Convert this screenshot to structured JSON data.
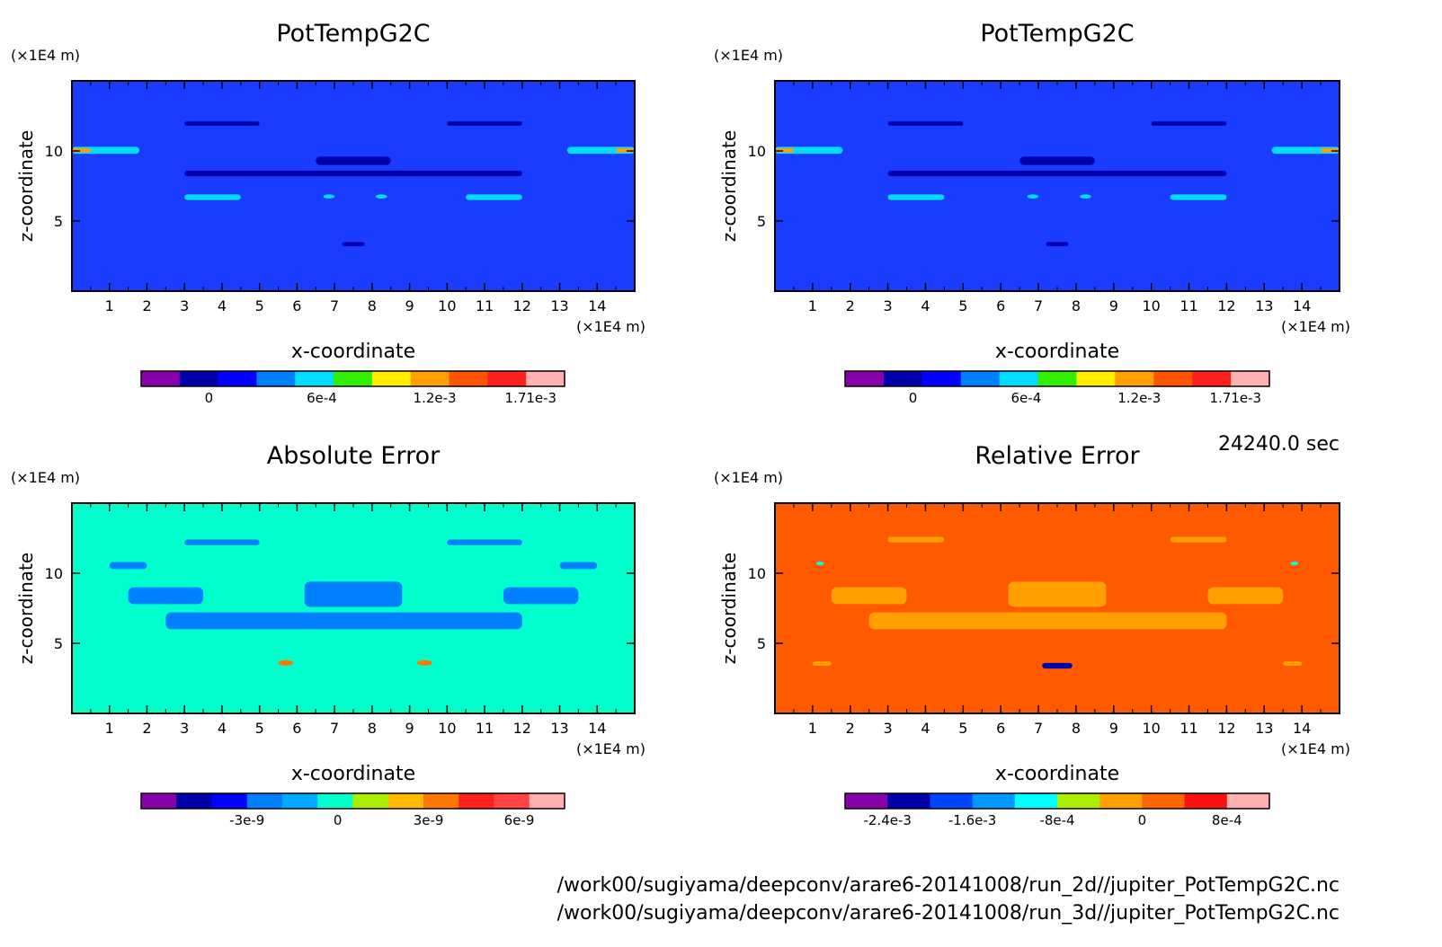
{
  "colors": {
    "frame": "#000000",
    "pot_background": "#1a3cff",
    "abs_background": "#00ffcc",
    "rel_background": "#ff5a00"
  },
  "time_label": "24240.0 sec",
  "file_paths": [
    "/work00/sugiyama/deepconv/arare6-20141008/run_2d//jupiter_PotTempG2C.nc",
    "/work00/sugiyama/deepconv/arare6-20141008/run_3d//jupiter_PotTempG2C.nc"
  ],
  "chart_data": [
    {
      "type": "heatmap",
      "title": "PotTempG2C",
      "xlabel": "x-coordinate",
      "ylabel": "z-coordinate",
      "x_unit": "(×1E4 m)",
      "y_unit": "(×1E4 m)",
      "xlim": [
        0,
        15
      ],
      "ylim": [
        0,
        15
      ],
      "x_ticks": [
        1,
        2,
        3,
        4,
        5,
        6,
        7,
        8,
        9,
        10,
        11,
        12,
        13,
        14
      ],
      "y_ticks": [
        5,
        10
      ],
      "background": "#1a3cff",
      "colorbar": {
        "colors": [
          "#8800aa",
          "#0000aa",
          "#0000ff",
          "#0080ff",
          "#00ddff",
          "#33ee00",
          "#ffee00",
          "#ffa000",
          "#ff5500",
          "#ff2020",
          "#ffb0b0"
        ],
        "tick_labels": [
          {
            "label": "0",
            "at": 0
          },
          {
            "label": "6e-4",
            "at": 0.0006
          },
          {
            "label": "1.2e-3",
            "at": 0.0012
          },
          {
            "label": "1.71e-3",
            "at": 0.00171
          }
        ],
        "range": [
          -0.00036,
          0.00189
        ]
      },
      "features": [
        {
          "kind": "band",
          "x": [
            0,
            1.8
          ],
          "z": [
            9.8,
            10.3
          ],
          "color": "#00ddff"
        },
        {
          "kind": "band",
          "x": [
            13.2,
            15
          ],
          "z": [
            9.8,
            10.3
          ],
          "color": "#00ddff"
        },
        {
          "kind": "band",
          "x": [
            0,
            0.5
          ],
          "z": [
            9.9,
            10.2
          ],
          "color": "#ffa000"
        },
        {
          "kind": "band",
          "x": [
            14.5,
            15
          ],
          "z": [
            9.9,
            10.2
          ],
          "color": "#ffa000"
        },
        {
          "kind": "band",
          "x": [
            3,
            4.5
          ],
          "z": [
            6.5,
            6.9
          ],
          "color": "#00ddff"
        },
        {
          "kind": "band",
          "x": [
            10.5,
            12
          ],
          "z": [
            6.5,
            6.9
          ],
          "color": "#00ddff"
        },
        {
          "kind": "blob",
          "x": [
            6.7,
            7.0
          ],
          "z": [
            6.6,
            6.9
          ],
          "color": "#00ddff"
        },
        {
          "kind": "blob",
          "x": [
            8.1,
            8.4
          ],
          "z": [
            6.6,
            6.9
          ],
          "color": "#00ddff"
        },
        {
          "kind": "band",
          "x": [
            3,
            12
          ],
          "z": [
            8.2,
            8.6
          ],
          "color": "#0000aa"
        },
        {
          "kind": "band",
          "x": [
            6.5,
            8.5
          ],
          "z": [
            9.0,
            9.6
          ],
          "color": "#0000aa"
        },
        {
          "kind": "band",
          "x": [
            3,
            5
          ],
          "z": [
            11.8,
            12.1
          ],
          "color": "#0000aa"
        },
        {
          "kind": "band",
          "x": [
            10,
            12
          ],
          "z": [
            11.8,
            12.1
          ],
          "color": "#0000aa"
        },
        {
          "kind": "band",
          "x": [
            7.2,
            7.8
          ],
          "z": [
            3.2,
            3.5
          ],
          "color": "#0000aa"
        }
      ]
    },
    {
      "type": "heatmap",
      "title": "PotTempG2C",
      "xlabel": "x-coordinate",
      "ylabel": "z-coordinate",
      "x_unit": "(×1E4 m)",
      "y_unit": "(×1E4 m)",
      "xlim": [
        0,
        15
      ],
      "ylim": [
        0,
        15
      ],
      "x_ticks": [
        1,
        2,
        3,
        4,
        5,
        6,
        7,
        8,
        9,
        10,
        11,
        12,
        13,
        14
      ],
      "y_ticks": [
        5,
        10
      ],
      "background": "#1a3cff",
      "colorbar": {
        "colors": [
          "#8800aa",
          "#0000aa",
          "#0000ff",
          "#0080ff",
          "#00ddff",
          "#33ee00",
          "#ffee00",
          "#ffa000",
          "#ff5500",
          "#ff2020",
          "#ffb0b0"
        ],
        "tick_labels": [
          {
            "label": "0",
            "at": 0
          },
          {
            "label": "6e-4",
            "at": 0.0006
          },
          {
            "label": "1.2e-3",
            "at": 0.0012
          },
          {
            "label": "1.71e-3",
            "at": 0.00171
          }
        ],
        "range": [
          -0.00036,
          0.00189
        ]
      },
      "features": [
        {
          "kind": "band",
          "x": [
            0,
            1.8
          ],
          "z": [
            9.8,
            10.3
          ],
          "color": "#00ddff"
        },
        {
          "kind": "band",
          "x": [
            13.2,
            15
          ],
          "z": [
            9.8,
            10.3
          ],
          "color": "#00ddff"
        },
        {
          "kind": "band",
          "x": [
            0,
            0.5
          ],
          "z": [
            9.9,
            10.2
          ],
          "color": "#ffa000"
        },
        {
          "kind": "band",
          "x": [
            14.5,
            15
          ],
          "z": [
            9.9,
            10.2
          ],
          "color": "#ffa000"
        },
        {
          "kind": "band",
          "x": [
            3,
            4.5
          ],
          "z": [
            6.5,
            6.9
          ],
          "color": "#00ddff"
        },
        {
          "kind": "band",
          "x": [
            10.5,
            12
          ],
          "z": [
            6.5,
            6.9
          ],
          "color": "#00ddff"
        },
        {
          "kind": "blob",
          "x": [
            6.7,
            7.0
          ],
          "z": [
            6.6,
            6.9
          ],
          "color": "#00ddff"
        },
        {
          "kind": "blob",
          "x": [
            8.1,
            8.4
          ],
          "z": [
            6.6,
            6.9
          ],
          "color": "#00ddff"
        },
        {
          "kind": "band",
          "x": [
            3,
            12
          ],
          "z": [
            8.2,
            8.6
          ],
          "color": "#0000aa"
        },
        {
          "kind": "band",
          "x": [
            6.5,
            8.5
          ],
          "z": [
            9.0,
            9.6
          ],
          "color": "#0000aa"
        },
        {
          "kind": "band",
          "x": [
            3,
            5
          ],
          "z": [
            11.8,
            12.1
          ],
          "color": "#0000aa"
        },
        {
          "kind": "band",
          "x": [
            10,
            12
          ],
          "z": [
            11.8,
            12.1
          ],
          "color": "#0000aa"
        },
        {
          "kind": "band",
          "x": [
            7.2,
            7.8
          ],
          "z": [
            3.2,
            3.5
          ],
          "color": "#0000aa"
        }
      ]
    },
    {
      "type": "heatmap",
      "title": "Absolute Error",
      "xlabel": "x-coordinate",
      "ylabel": "z-coordinate",
      "x_unit": "(×1E4 m)",
      "y_unit": "(×1E4 m)",
      "xlim": [
        0,
        15
      ],
      "ylim": [
        0,
        15
      ],
      "x_ticks": [
        1,
        2,
        3,
        4,
        5,
        6,
        7,
        8,
        9,
        10,
        11,
        12,
        13,
        14
      ],
      "y_ticks": [
        5,
        10
      ],
      "background": "#00ffcc",
      "colorbar": {
        "colors": [
          "#8800aa",
          "#0000aa",
          "#0000ff",
          "#0080ff",
          "#00aaff",
          "#00ffcc",
          "#aaee00",
          "#ffbb00",
          "#ff7700",
          "#ff2020",
          "#ff4444",
          "#ffb0b0"
        ],
        "tick_labels": [
          {
            "label": "-3e-9",
            "at": -3e-09
          },
          {
            "label": "0",
            "at": 0
          },
          {
            "label": "3e-9",
            "at": 3e-09
          },
          {
            "label": "6e-9",
            "at": 6e-09
          }
        ],
        "range": [
          -6.5e-09,
          7.5e-09
        ]
      },
      "features": [
        {
          "kind": "band",
          "x": [
            2.5,
            12
          ],
          "z": [
            6.0,
            7.2
          ],
          "color": "#0080ff"
        },
        {
          "kind": "band",
          "x": [
            6.2,
            8.8
          ],
          "z": [
            7.6,
            9.4
          ],
          "color": "#0080ff"
        },
        {
          "kind": "band",
          "x": [
            1.5,
            3.5
          ],
          "z": [
            7.8,
            9.0
          ],
          "color": "#0080ff"
        },
        {
          "kind": "band",
          "x": [
            11.5,
            13.5
          ],
          "z": [
            7.8,
            9.0
          ],
          "color": "#0080ff"
        },
        {
          "kind": "band",
          "x": [
            1.0,
            2.0
          ],
          "z": [
            10.3,
            10.8
          ],
          "color": "#0080ff"
        },
        {
          "kind": "band",
          "x": [
            13.0,
            14.0
          ],
          "z": [
            10.3,
            10.8
          ],
          "color": "#0080ff"
        },
        {
          "kind": "band",
          "x": [
            3,
            5
          ],
          "z": [
            12.0,
            12.4
          ],
          "color": "#0080ff"
        },
        {
          "kind": "band",
          "x": [
            10,
            12
          ],
          "z": [
            12.0,
            12.4
          ],
          "color": "#0080ff"
        },
        {
          "kind": "blob",
          "x": [
            5.5,
            5.9
          ],
          "z": [
            3.4,
            3.8
          ],
          "color": "#ff7700"
        },
        {
          "kind": "blob",
          "x": [
            9.2,
            9.6
          ],
          "z": [
            3.4,
            3.8
          ],
          "color": "#ff7700"
        }
      ]
    },
    {
      "type": "heatmap",
      "title": "Relative Error",
      "xlabel": "x-coordinate",
      "ylabel": "z-coordinate",
      "x_unit": "(×1E4 m)",
      "y_unit": "(×1E4 m)",
      "xlim": [
        0,
        15
      ],
      "ylim": [
        0,
        15
      ],
      "x_ticks": [
        1,
        2,
        3,
        4,
        5,
        6,
        7,
        8,
        9,
        10,
        11,
        12,
        13,
        14
      ],
      "y_ticks": [
        5,
        10
      ],
      "background": "#ff5a00",
      "colorbar": {
        "colors": [
          "#8800aa",
          "#0000aa",
          "#0044ff",
          "#0099ff",
          "#00ffff",
          "#aaee00",
          "#ffa000",
          "#ff6600",
          "#ff1010",
          "#ffb0b0"
        ],
        "tick_labels": [
          {
            "label": "-2.4e-3",
            "at": -0.0024
          },
          {
            "label": "-1.6e-3",
            "at": -0.0016
          },
          {
            "label": "-8e-4",
            "at": -0.0008
          },
          {
            "label": "0",
            "at": 0
          },
          {
            "label": "8e-4",
            "at": 0.0008
          }
        ],
        "range": [
          -0.0028,
          0.0012
        ]
      },
      "features": [
        {
          "kind": "band",
          "x": [
            2.5,
            12
          ],
          "z": [
            6.0,
            7.2
          ],
          "color": "#ffa000"
        },
        {
          "kind": "band",
          "x": [
            6.2,
            8.8
          ],
          "z": [
            7.6,
            9.4
          ],
          "color": "#ffa000"
        },
        {
          "kind": "band",
          "x": [
            1.5,
            3.5
          ],
          "z": [
            7.8,
            9.0
          ],
          "color": "#ffa000"
        },
        {
          "kind": "band",
          "x": [
            11.5,
            13.5
          ],
          "z": [
            7.8,
            9.0
          ],
          "color": "#ffa000"
        },
        {
          "kind": "band",
          "x": [
            3,
            4.5
          ],
          "z": [
            12.2,
            12.6
          ],
          "color": "#ffa000"
        },
        {
          "kind": "band",
          "x": [
            10.5,
            12
          ],
          "z": [
            12.2,
            12.6
          ],
          "color": "#ffa000"
        },
        {
          "kind": "blob",
          "x": [
            1.1,
            1.3
          ],
          "z": [
            10.6,
            10.8
          ],
          "color": "#00ffff"
        },
        {
          "kind": "blob",
          "x": [
            13.7,
            13.9
          ],
          "z": [
            10.6,
            10.8
          ],
          "color": "#00ffff"
        },
        {
          "kind": "band",
          "x": [
            7.1,
            7.9
          ],
          "z": [
            3.2,
            3.6
          ],
          "color": "#0000aa"
        },
        {
          "kind": "band",
          "x": [
            1.0,
            1.5
          ],
          "z": [
            3.4,
            3.7
          ],
          "color": "#ffa000"
        },
        {
          "kind": "band",
          "x": [
            13.5,
            14.0
          ],
          "z": [
            3.4,
            3.7
          ],
          "color": "#ffa000"
        }
      ]
    }
  ]
}
